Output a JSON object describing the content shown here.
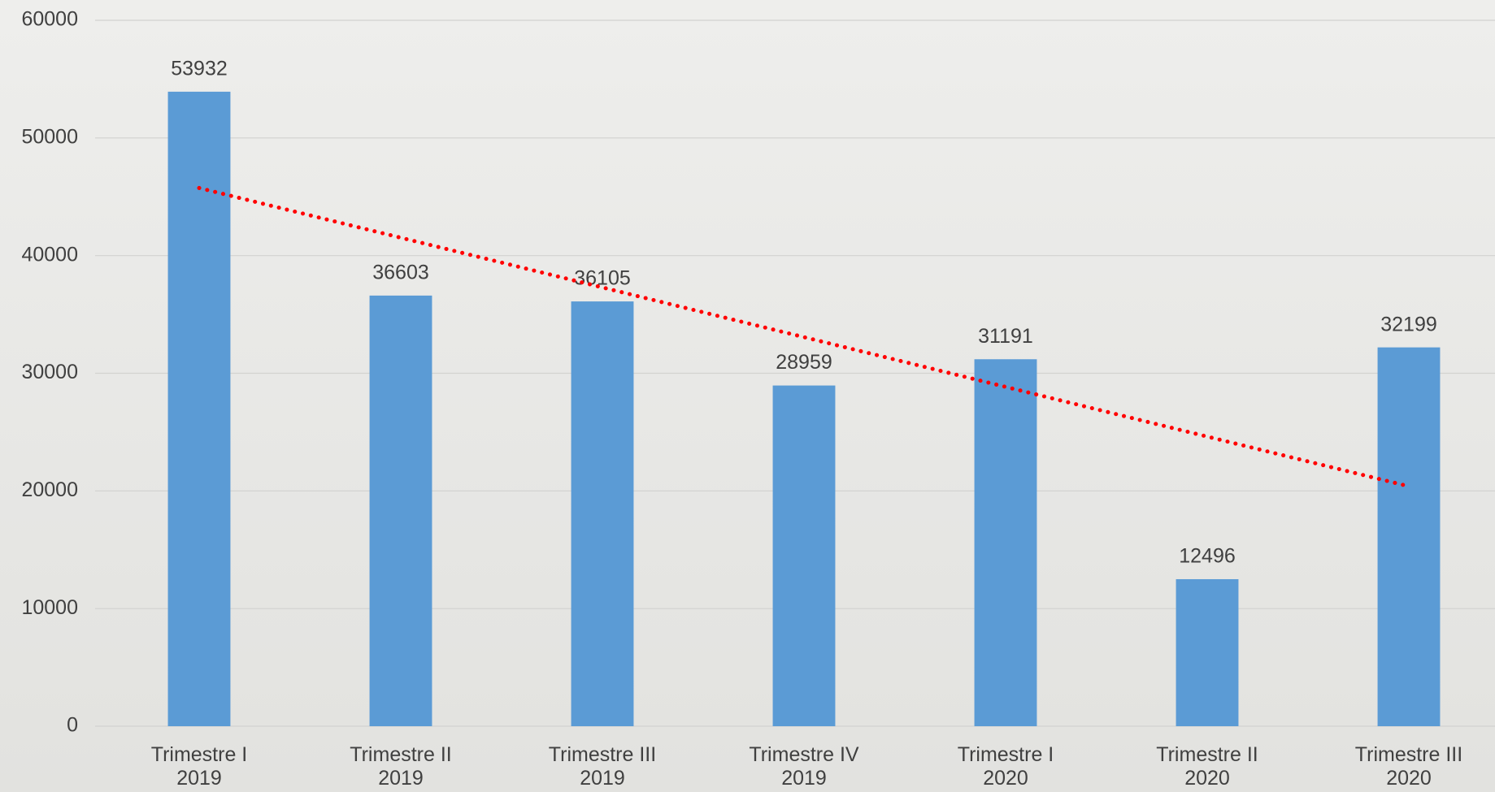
{
  "chart_data": {
    "type": "bar",
    "categories": [
      "Trimestre I\n2019",
      "Trimestre II\n2019",
      "Trimestre III\n2019",
      "Trimestre IV\n2019",
      "Trimestre I\n2020",
      "Trimestre II\n2020",
      "Trimestre III\n2020"
    ],
    "values": [
      53932,
      36603,
      36105,
      28959,
      31191,
      12496,
      32199
    ],
    "color": "#5b9bd5",
    "ylim": [
      0,
      60000
    ],
    "yticks": [
      0,
      10000,
      20000,
      30000,
      40000,
      50000,
      60000
    ],
    "grid": true,
    "data_labels": true,
    "trendline": {
      "type": "linear",
      "color": "#ff0000",
      "style": "dotted"
    }
  }
}
